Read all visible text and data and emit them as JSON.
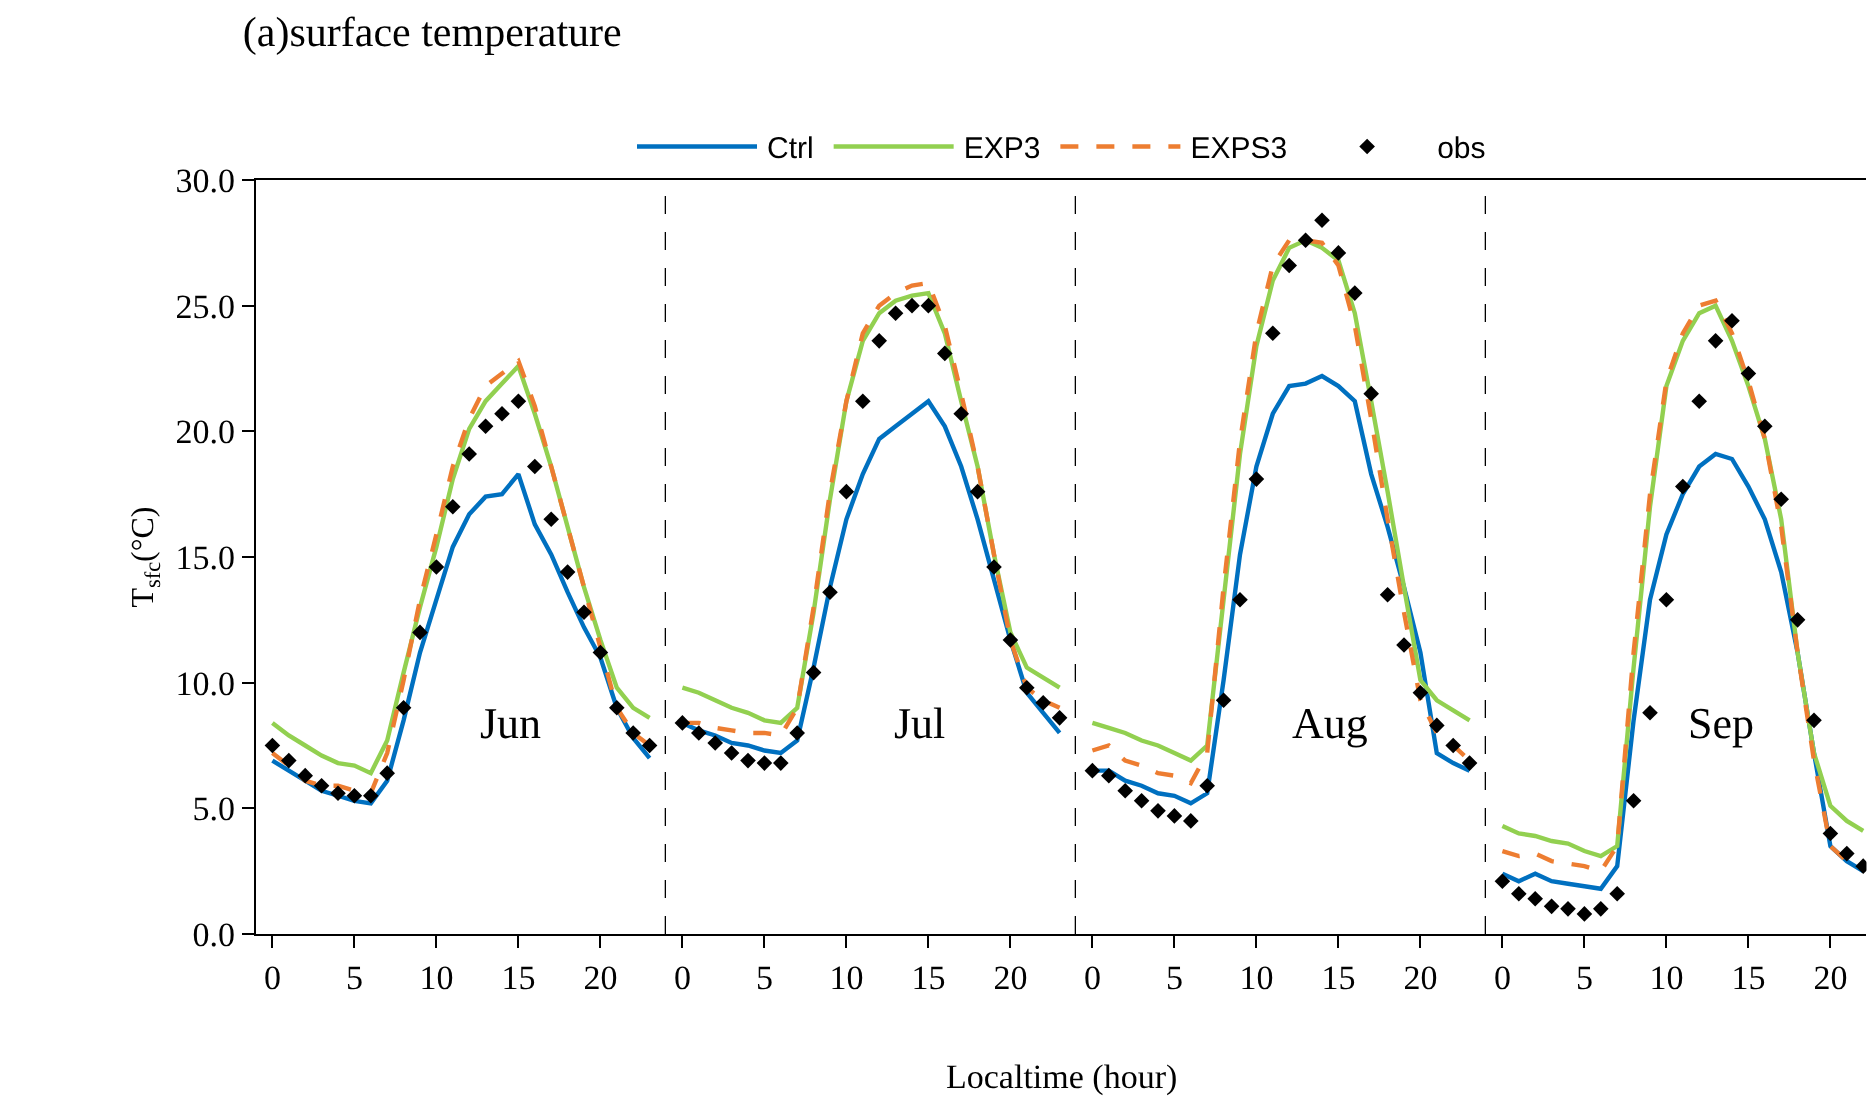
{
  "chart_data": [
    {
      "type": "line",
      "title": "(a)surface temperature",
      "ylabel": "T$_{sfc}$(°C)",
      "annotations": [
        "Jun"
      ],
      "x": [
        0,
        1,
        2,
        3,
        4,
        5,
        6,
        7,
        8,
        9,
        10,
        11,
        12,
        13,
        14,
        15,
        16,
        17,
        18,
        19,
        20,
        21,
        22,
        23
      ],
      "series": [
        {
          "name": "obs",
          "type": "scatter",
          "marker": "diamond",
          "color": "#000000",
          "values": [
            7.5,
            6.9,
            6.3,
            5.9,
            5.6,
            5.5,
            5.5,
            6.4,
            9.0,
            12.0,
            14.6,
            17.0,
            19.1,
            20.2,
            20.7,
            21.2,
            18.6,
            16.5,
            14.4,
            12.8,
            11.2,
            9.0,
            8.0,
            7.5
          ]
        },
        {
          "name": "Ctrl",
          "line_style": "solid",
          "color": "#0070c0",
          "values": [
            6.9,
            6.5,
            6.1,
            5.7,
            5.5,
            5.3,
            5.2,
            6.1,
            8.5,
            11.2,
            13.3,
            15.4,
            16.7,
            17.4,
            17.5,
            18.3,
            16.3,
            15.1,
            13.6,
            12.2,
            11.0,
            9.0,
            7.8,
            7.0
          ]
        },
        {
          "name": "EXP3",
          "line_style": "solid",
          "color": "#92d050",
          "values": [
            8.4,
            7.9,
            7.5,
            7.1,
            6.8,
            6.7,
            6.4,
            7.7,
            10.4,
            13.0,
            15.4,
            18.1,
            20.1,
            21.2,
            21.9,
            22.6,
            20.7,
            18.6,
            16.2,
            13.8,
            11.7,
            9.8,
            9.0,
            8.6
          ]
        },
        {
          "name": "EXPS3",
          "line_style": "dashed",
          "color": "#ed7d31",
          "values": [
            7.2,
            6.7,
            6.1,
            5.9,
            5.9,
            5.7,
            5.6,
            7.2,
            10.1,
            13.3,
            15.9,
            18.6,
            20.5,
            21.8,
            22.3,
            22.8,
            21.0,
            18.6,
            16.2,
            13.8,
            11.4,
            9.0,
            8.0,
            7.5
          ]
        }
      ],
      "xlim": [
        -1,
        24
      ],
      "xticks": [
        0,
        5,
        10,
        15,
        20
      ],
      "ylim": [
        0,
        30
      ],
      "yticks": [
        {
          "value": 0,
          "label": "0.0"
        },
        {
          "value": 5,
          "label": "5.0"
        },
        {
          "value": 10,
          "label": "10.0"
        },
        {
          "value": 15,
          "label": "15.0"
        },
        {
          "value": 20,
          "label": "20.0"
        },
        {
          "value": 25,
          "label": "25.0"
        },
        {
          "value": 30,
          "label": "30.0"
        }
      ],
      "ref_lines": [
        {
          "axis": "x",
          "value": 24,
          "color": "#000000",
          "line_style": "dashed"
        }
      ],
      "grid": false,
      "legend": "top"
    },
    {
      "type": "line",
      "xlabel": "Localtime (hour)",
      "annotations": [
        "Jul"
      ],
      "x": [
        0,
        1,
        2,
        3,
        4,
        5,
        6,
        7,
        8,
        9,
        10,
        11,
        12,
        13,
        14,
        15,
        16,
        17,
        18,
        19,
        20,
        21,
        22,
        23
      ],
      "series": [
        {
          "type": "scatter",
          "marker": "diamond",
          "color": "#000000",
          "values": [
            8.4,
            8.0,
            7.6,
            7.2,
            6.9,
            6.8,
            6.8,
            8.0,
            10.4,
            13.6,
            17.6,
            21.2,
            23.6,
            24.7,
            25.0,
            25.0,
            23.1,
            20.7,
            17.6,
            14.6,
            11.7,
            9.8,
            9.2,
            8.6
          ]
        },
        {
          "line_style": "solid",
          "color": "#0070c0",
          "values": [
            8.4,
            8.1,
            7.9,
            7.6,
            7.5,
            7.3,
            7.2,
            7.7,
            10.6,
            13.8,
            16.5,
            18.3,
            19.7,
            20.2,
            20.7,
            21.2,
            20.2,
            18.6,
            16.5,
            14.1,
            11.7,
            9.6,
            8.8,
            8.0
          ]
        },
        {
          "line_style": "solid",
          "color": "#92d050",
          "values": [
            9.8,
            9.6,
            9.3,
            9.0,
            8.8,
            8.5,
            8.4,
            9.0,
            12.8,
            17.3,
            21.2,
            23.6,
            24.7,
            25.2,
            25.4,
            25.5,
            23.9,
            21.2,
            18.6,
            15.1,
            12.0,
            10.6,
            10.2,
            9.8
          ]
        },
        {
          "line_style": "dashed",
          "color": "#ed7d31",
          "values": [
            8.4,
            8.4,
            8.2,
            8.1,
            8.0,
            8.0,
            7.9,
            9.0,
            13.0,
            17.6,
            21.2,
            23.9,
            25.0,
            25.5,
            25.8,
            25.9,
            24.2,
            21.5,
            18.6,
            15.1,
            11.7,
            9.8,
            9.3,
            9.0
          ]
        }
      ],
      "xlim": [
        -1,
        24
      ],
      "xticks": [
        0,
        5,
        10,
        15,
        20
      ],
      "ylim": [
        0,
        30
      ],
      "ref_lines": [
        {
          "axis": "x",
          "value": 24,
          "color": "#000000",
          "line_style": "dashed"
        }
      ],
      "grid": false,
      "tick_labels": "x"
    },
    {
      "type": "line",
      "annotations": [
        "Aug"
      ],
      "x": [
        0,
        1,
        2,
        3,
        4,
        5,
        6,
        7,
        8,
        9,
        10,
        11,
        12,
        13,
        14,
        15,
        16,
        17,
        18,
        19,
        20,
        21,
        22,
        23
      ],
      "series": [
        {
          "type": "scatter",
          "marker": "diamond",
          "color": "#000000",
          "values": [
            6.5,
            6.3,
            5.7,
            5.3,
            4.9,
            4.7,
            4.5,
            5.9,
            9.3,
            13.3,
            18.1,
            23.9,
            26.6,
            27.6,
            28.4,
            27.1,
            25.5,
            21.5,
            13.5,
            11.5,
            9.6,
            8.3,
            7.5,
            6.8
          ]
        },
        {
          "line_style": "solid",
          "color": "#0070c0",
          "values": [
            6.5,
            6.5,
            6.1,
            5.9,
            5.6,
            5.5,
            5.2,
            5.6,
            10.1,
            15.1,
            18.6,
            20.7,
            21.8,
            21.9,
            22.2,
            21.8,
            21.2,
            18.3,
            16.2,
            13.8,
            11.2,
            7.2,
            6.8,
            6.5
          ]
        },
        {
          "line_style": "solid",
          "color": "#92d050",
          "values": [
            8.4,
            8.2,
            8.0,
            7.7,
            7.5,
            7.2,
            6.9,
            7.5,
            13.3,
            19.1,
            23.4,
            26.0,
            27.3,
            27.6,
            27.3,
            26.8,
            24.7,
            21.2,
            17.6,
            13.8,
            10.1,
            9.3,
            8.9,
            8.5
          ]
        },
        {
          "line_style": "dashed",
          "color": "#ed7d31",
          "values": [
            7.3,
            7.5,
            6.9,
            6.7,
            6.4,
            6.3,
            6.0,
            7.2,
            13.8,
            19.6,
            23.9,
            26.6,
            27.6,
            27.6,
            27.5,
            26.6,
            24.2,
            20.5,
            16.5,
            12.8,
            9.3,
            8.0,
            7.5,
            6.9
          ]
        }
      ],
      "xlim": [
        -1,
        24
      ],
      "xticks": [
        0,
        5,
        10,
        15,
        20
      ],
      "ylim": [
        0,
        30
      ],
      "ref_lines": [
        {
          "axis": "x",
          "value": 24,
          "color": "#000000",
          "line_style": "dashed"
        }
      ],
      "grid": false,
      "tick_labels": "x"
    },
    {
      "type": "line",
      "annotations": [
        "Sep"
      ],
      "x": [
        0,
        1,
        2,
        3,
        4,
        5,
        6,
        7,
        8,
        9,
        10,
        11,
        12,
        13,
        14,
        15,
        16,
        17,
        18,
        19,
        20,
        21,
        22
      ],
      "series": [
        {
          "type": "scatter",
          "marker": "diamond",
          "color": "#000000",
          "values": [
            2.1,
            1.6,
            1.4,
            1.1,
            1.0,
            0.8,
            1.0,
            1.6,
            5.3,
            8.8,
            13.3,
            17.8,
            21.2,
            23.6,
            24.4,
            22.3,
            20.2,
            17.3,
            12.5,
            8.5,
            4.0,
            3.2,
            2.7
          ]
        },
        {
          "line_style": "solid",
          "color": "#0070c0",
          "values": [
            2.4,
            2.1,
            2.4,
            2.1,
            2.0,
            1.9,
            1.8,
            2.7,
            8.5,
            13.3,
            15.9,
            17.5,
            18.6,
            19.1,
            18.9,
            17.8,
            16.5,
            14.4,
            11.2,
            7.2,
            3.5,
            2.9,
            2.5
          ]
        },
        {
          "line_style": "solid",
          "color": "#92d050",
          "values": [
            4.3,
            4.0,
            3.9,
            3.7,
            3.6,
            3.3,
            3.1,
            3.5,
            10.6,
            17.0,
            21.8,
            23.6,
            24.7,
            25.0,
            23.6,
            21.8,
            19.7,
            16.5,
            11.2,
            7.2,
            5.1,
            4.5,
            4.1
          ]
        },
        {
          "line_style": "dashed",
          "color": "#ed7d31",
          "values": [
            3.3,
            3.1,
            3.2,
            2.9,
            2.8,
            2.7,
            2.5,
            3.5,
            11.2,
            17.5,
            22.0,
            23.9,
            25.0,
            25.2,
            23.9,
            22.0,
            19.7,
            16.2,
            11.2,
            6.9,
            3.5,
            2.9,
            2.7
          ]
        }
      ],
      "xlim": [
        -1,
        22.2
      ],
      "xticks": [
        0,
        5,
        10,
        15,
        20
      ],
      "ylim": [
        0,
        30
      ],
      "grid": false,
      "tick_labels": "x"
    }
  ]
}
